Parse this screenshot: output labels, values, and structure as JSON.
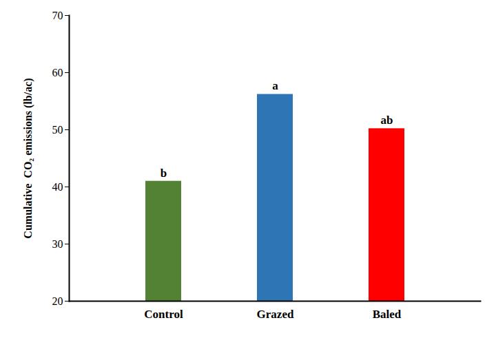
{
  "chart_data": {
    "type": "bar",
    "y_label": "Cumulative  CO₂ emissions (lb/ac)",
    "categories": [
      "Control",
      "Grazed",
      "Baled"
    ],
    "values": [
      41.0,
      56.2,
      50.2
    ],
    "annotations": [
      "b",
      "a",
      "ab"
    ],
    "colors": [
      "#548235",
      "#2e75b6",
      "#ff0000"
    ],
    "ylim": [
      20,
      70
    ],
    "yticks": [
      20,
      30,
      40,
      50,
      60,
      70
    ],
    "grid": false
  }
}
